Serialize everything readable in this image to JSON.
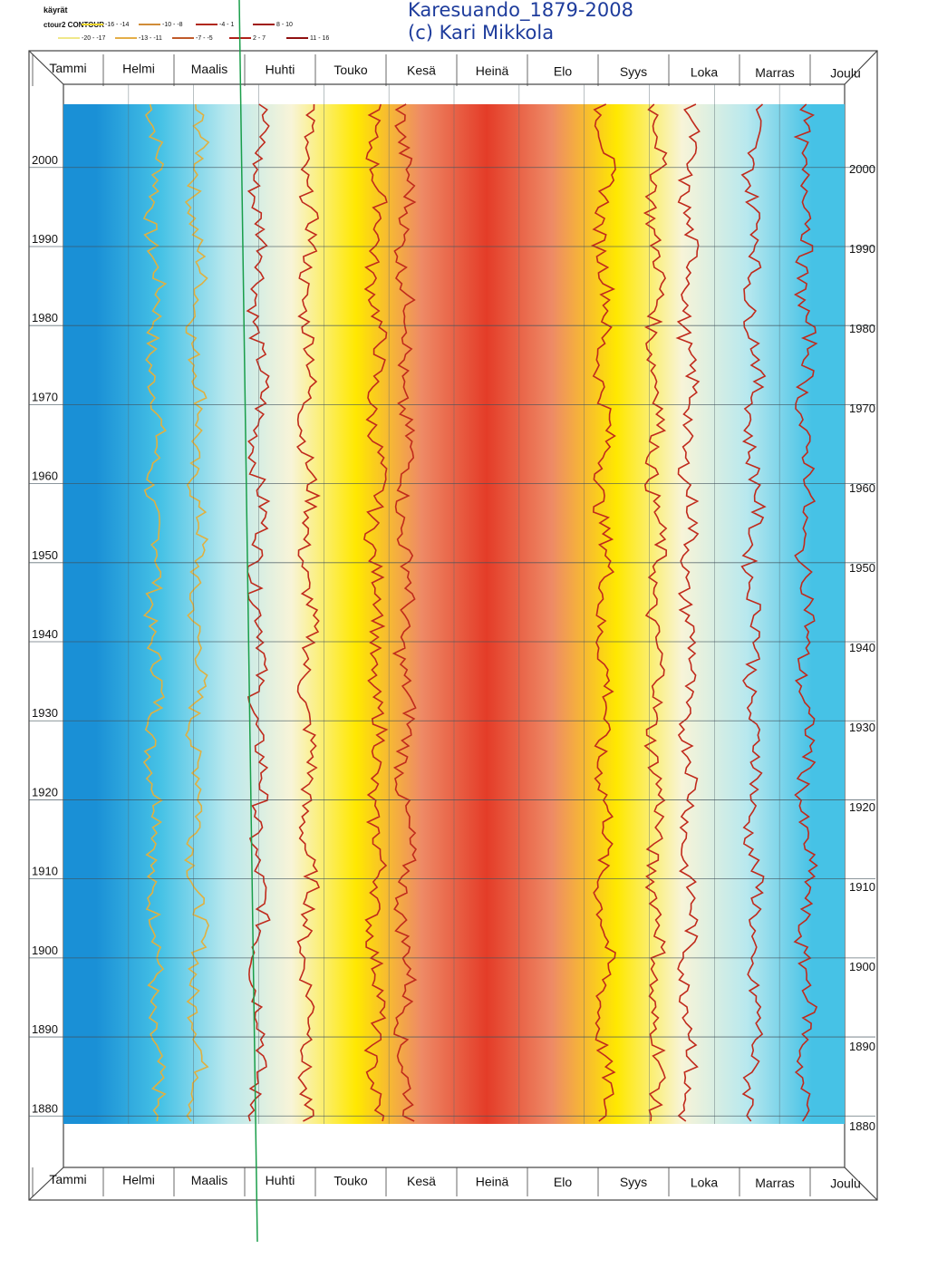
{
  "chart_data": {
    "type": "heatmap",
    "title": "Karesuando_1879-2008",
    "subtitle": "(c) Kari Mikkola",
    "legend": {
      "heading": "käyrät",
      "series_name": "ctour2 CONTOUR",
      "entries": [
        {
          "label": "-16 - -14",
          "color": "#f0d830"
        },
        {
          "label": "-10 - -8",
          "color": "#d08c38"
        },
        {
          "label": "-4 - 1",
          "color": "#b0281c"
        },
        {
          "label": "8 - 10",
          "color": "#a01810"
        },
        {
          "label": "-20 - -17",
          "color": "#f0e88a"
        },
        {
          "label": "-13 - -11",
          "color": "#e4ae48"
        },
        {
          "label": "-7 - -5",
          "color": "#c05a2a"
        },
        {
          "label": "2 - 7",
          "color": "#b02018"
        },
        {
          "label": "11 - 16",
          "color": "#901010"
        }
      ]
    },
    "months": [
      "Tammi",
      "Helmi",
      "Maalis",
      "Huhti",
      "Touko",
      "Kesä",
      "Heinä",
      "Elo",
      "Syys",
      "Loka",
      "Marras",
      "Joulu"
    ],
    "year_ticks": [
      2000,
      1990,
      1980,
      1970,
      1960,
      1950,
      1940,
      1930,
      1920,
      1910,
      1900,
      1890,
      1880
    ],
    "year_range": [
      1879,
      2008
    ],
    "monthly_mean_temp": [
      -15.5,
      -14.5,
      -9.5,
      -3.0,
      3.5,
      10.0,
      13.0,
      10.5,
      5.0,
      -2.0,
      -8.5,
      -13.0
    ],
    "colors": {
      "coldest": "#1a90d6",
      "cold": "#46c2e6",
      "cool": "#b8e8ee",
      "neutral": "#f8f4d8",
      "mild": "#fff7b0",
      "warm": "#ffe800",
      "hot": "#f6c89c",
      "hotter": "#ee8a66",
      "hottest": "#e43c28",
      "contour": "#c02a1c",
      "title": "#1e3c9c",
      "marker": "#1a9e4a"
    }
  }
}
